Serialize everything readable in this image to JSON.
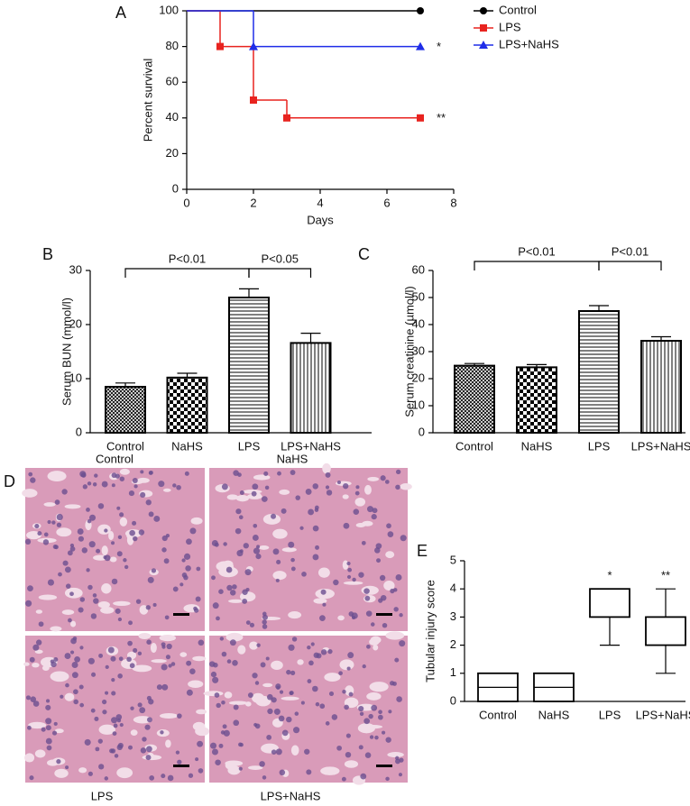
{
  "chart_data": [
    {
      "type": "line",
      "step": true,
      "panel": "A",
      "xlabel": "Days",
      "ylabel": "Percent survival",
      "xlim": [
        0,
        8
      ],
      "xticks": [
        0,
        2,
        4,
        6,
        8
      ],
      "ylim": [
        0,
        100
      ],
      "yticks": [
        0,
        20,
        40,
        60,
        80,
        100
      ],
      "series": [
        {
          "name": "Control",
          "color": "#000000",
          "marker": "circle",
          "x": [
            0,
            7
          ],
          "values": [
            100,
            100
          ]
        },
        {
          "name": "LPS",
          "color": "#e8231f",
          "marker": "square",
          "x": [
            0,
            1,
            2,
            3,
            7
          ],
          "values": [
            100,
            80,
            50,
            40,
            40
          ]
        },
        {
          "name": "LPS+NaHS",
          "color": "#1f2de8",
          "marker": "triangle",
          "x": [
            0,
            2,
            7
          ],
          "values": [
            100,
            80,
            80
          ]
        }
      ],
      "annotations": [
        "*",
        "**"
      ]
    },
    {
      "type": "bar",
      "panel": "B",
      "ylabel": "Serum BUN (mmol/l)",
      "categories": [
        "Control",
        "NaHS",
        "LPS",
        "LPS+NaHS"
      ],
      "values": [
        8.5,
        10.2,
        25,
        16.6
      ],
      "errors": [
        0.7,
        0.8,
        1.6,
        1.8
      ],
      "fills": [
        "crosshatch",
        "checker",
        "horizontal",
        "vertical"
      ],
      "ylim": [
        0,
        30
      ],
      "yticks": [
        0,
        10,
        20,
        30
      ],
      "annotations": [
        "P<0.01",
        "P<0.05"
      ]
    },
    {
      "type": "bar",
      "panel": "C",
      "ylabel": "Serum creatinine (µmol/l)",
      "categories": [
        "Control",
        "NaHS",
        "LPS",
        "LPS+NaHS"
      ],
      "values": [
        24.8,
        24.2,
        45,
        34
      ],
      "errors": [
        0.8,
        1,
        2,
        1.5
      ],
      "fills": [
        "crosshatch",
        "checker",
        "horizontal",
        "vertical"
      ],
      "ylim": [
        0,
        60
      ],
      "yticks": [
        0,
        10,
        20,
        30,
        40,
        50,
        60
      ],
      "annotations": [
        "P<0.01",
        "P<0.01"
      ]
    },
    {
      "type": "box",
      "panel": "E",
      "ylabel": "Tubular injury score",
      "categories": [
        "Control",
        "NaHS",
        "LPS",
        "LPS+NaHS"
      ],
      "min": [
        0,
        0,
        2,
        1
      ],
      "q1": [
        0,
        0,
        3,
        2
      ],
      "median": [
        0.5,
        0.5,
        3,
        2
      ],
      "q3": [
        1,
        1,
        4,
        3
      ],
      "max": [
        1,
        1,
        4,
        4
      ],
      "ylim": [
        0,
        5
      ],
      "yticks": [
        0,
        1,
        2,
        3,
        4,
        5
      ],
      "annotations": [
        null,
        null,
        "*",
        "**"
      ]
    }
  ],
  "histology": {
    "panel": "D",
    "labels": [
      "Control",
      "NaHS",
      "LPS",
      "LPS+NaHS"
    ]
  }
}
